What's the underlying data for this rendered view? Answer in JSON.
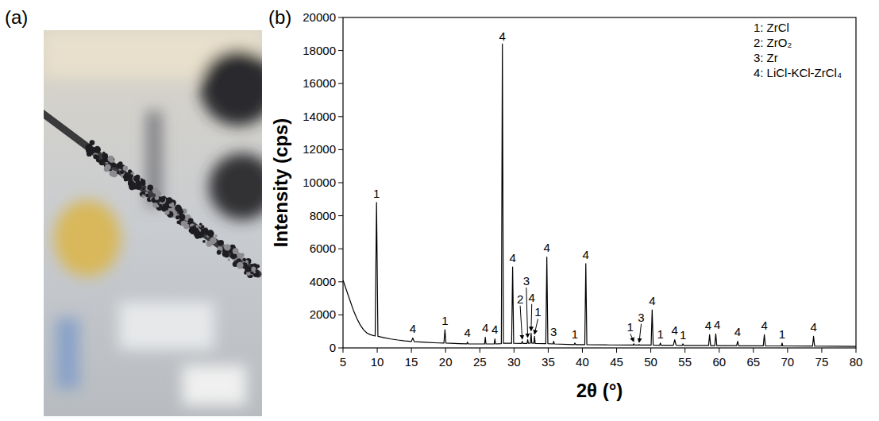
{
  "panel_labels": [
    "(a)",
    "(b)"
  ],
  "chart_data": {
    "type": "line",
    "x_label": "2θ (°)",
    "y_label": "Intensity (cps)",
    "xlim": [
      5,
      80
    ],
    "xticks": [
      5,
      10,
      15,
      20,
      25,
      30,
      35,
      40,
      45,
      50,
      55,
      60,
      65,
      70,
      75,
      80
    ],
    "ylim": [
      0,
      20000
    ],
    "yticks": [
      0,
      2000,
      4000,
      6000,
      8000,
      10000,
      12000,
      14000,
      16000,
      18000,
      20000
    ],
    "grid": false,
    "legend": "upper right",
    "legend_entries": [
      "1: ZrCl",
      "2: ZrO₂",
      "3: Zr",
      "4: LiCl-KCl-ZrCl₄"
    ],
    "x": [
      5,
      5.5,
      6,
      6.5,
      7,
      7.5,
      8,
      8.5,
      9,
      9.7,
      9.9,
      10.1,
      11,
      12,
      13,
      14,
      15,
      15.2,
      15.4,
      17,
      19,
      19.75,
      19.9,
      20.05,
      22,
      23.1,
      23.2,
      23.3,
      25,
      25.7,
      25.8,
      25.9,
      27.1,
      27.2,
      27.3,
      28.15,
      28.3,
      28.45,
      29.65,
      29.8,
      29.95,
      31.1,
      31.2,
      31.3,
      31.9,
      32.0,
      32.1,
      32.4,
      32.5,
      32.6,
      32.9,
      33.0,
      33.1,
      34.65,
      34.8,
      34.95,
      35.7,
      35.8,
      35.9,
      38.8,
      38.9,
      39.0,
      40.35,
      40.5,
      40.65,
      44,
      47.4,
      47.5,
      47.6,
      48.2,
      48.3,
      48.4,
      50.05,
      50.2,
      50.35,
      51.3,
      51.4,
      51.5,
      53.3,
      53.5,
      53.7,
      54.6,
      54.7,
      54.8,
      58.45,
      58.6,
      58.75,
      59.35,
      59.5,
      59.65,
      62.55,
      62.7,
      62.85,
      66.45,
      66.6,
      66.75,
      69.1,
      69.2,
      69.3,
      73.65,
      73.8,
      73.95,
      77,
      80
    ],
    "series": [
      {
        "color": "#000000",
        "line_style": "solid",
        "values": [
          4100,
          3500,
          2900,
          2300,
          1800,
          1400,
          1100,
          900,
          800,
          720,
          8800,
          700,
          620,
          540,
          480,
          430,
          390,
          600,
          380,
          340,
          300,
          290,
          1100,
          290,
          260,
          250,
          350,
          250,
          240,
          240,
          650,
          240,
          240,
          550,
          240,
          260,
          18400,
          280,
          280,
          4900,
          280,
          270,
          400,
          270,
          270,
          500,
          280,
          290,
          900,
          290,
          280,
          700,
          270,
          260,
          5500,
          260,
          240,
          400,
          240,
          200,
          300,
          200,
          200,
          5100,
          200,
          180,
          170,
          250,
          170,
          170,
          200,
          170,
          170,
          2300,
          170,
          160,
          300,
          160,
          160,
          500,
          160,
          150,
          250,
          150,
          150,
          800,
          140,
          140,
          850,
          140,
          140,
          400,
          130,
          130,
          800,
          130,
          120,
          300,
          120,
          110,
          700,
          110,
          100,
          90
        ]
      }
    ],
    "annotations": [
      {
        "label": "1",
        "x": 9.9,
        "y": 9100
      },
      {
        "label": "4",
        "x": 15.2,
        "y": 900
      },
      {
        "label": "1",
        "x": 19.9,
        "y": 1400
      },
      {
        "label": "4",
        "x": 23.2,
        "y": 650
      },
      {
        "label": "4",
        "x": 25.8,
        "y": 950
      },
      {
        "label": "4",
        "x": 27.2,
        "y": 850
      },
      {
        "label": "4",
        "x": 28.3,
        "y": 18600
      },
      {
        "label": "4",
        "x": 29.8,
        "y": 5200
      },
      {
        "label": "2",
        "x": 30.9,
        "y": 2700,
        "target": [
          31.2,
          450
        ]
      },
      {
        "label": "3",
        "x": 31.8,
        "y": 3800,
        "target": [
          32.0,
          550
        ]
      },
      {
        "label": "4",
        "x": 32.6,
        "y": 2800,
        "target": [
          32.5,
          950
        ]
      },
      {
        "label": "1",
        "x": 33.5,
        "y": 1900,
        "target": [
          33.0,
          750
        ]
      },
      {
        "label": "4",
        "x": 34.8,
        "y": 5800
      },
      {
        "label": "3",
        "x": 35.8,
        "y": 700
      },
      {
        "label": "4",
        "x": 40.5,
        "y": 5400
      },
      {
        "label": "1",
        "x": 38.9,
        "y": 600
      },
      {
        "label": "1",
        "x": 47.0,
        "y": 1000,
        "target": [
          47.5,
          300
        ]
      },
      {
        "label": "3",
        "x": 48.6,
        "y": 1600,
        "target": [
          48.3,
          250
        ]
      },
      {
        "label": "4",
        "x": 50.2,
        "y": 2600
      },
      {
        "label": "1",
        "x": 51.4,
        "y": 600
      },
      {
        "label": "4",
        "x": 53.5,
        "y": 800
      },
      {
        "label": "1",
        "x": 54.7,
        "y": 550
      },
      {
        "label": "4",
        "x": 58.4,
        "y": 1100
      },
      {
        "label": "4",
        "x": 59.7,
        "y": 1150
      },
      {
        "label": "4",
        "x": 62.7,
        "y": 700
      },
      {
        "label": "4",
        "x": 66.6,
        "y": 1100
      },
      {
        "label": "1",
        "x": 69.2,
        "y": 600
      },
      {
        "label": "4",
        "x": 73.8,
        "y": 1000
      }
    ]
  }
}
